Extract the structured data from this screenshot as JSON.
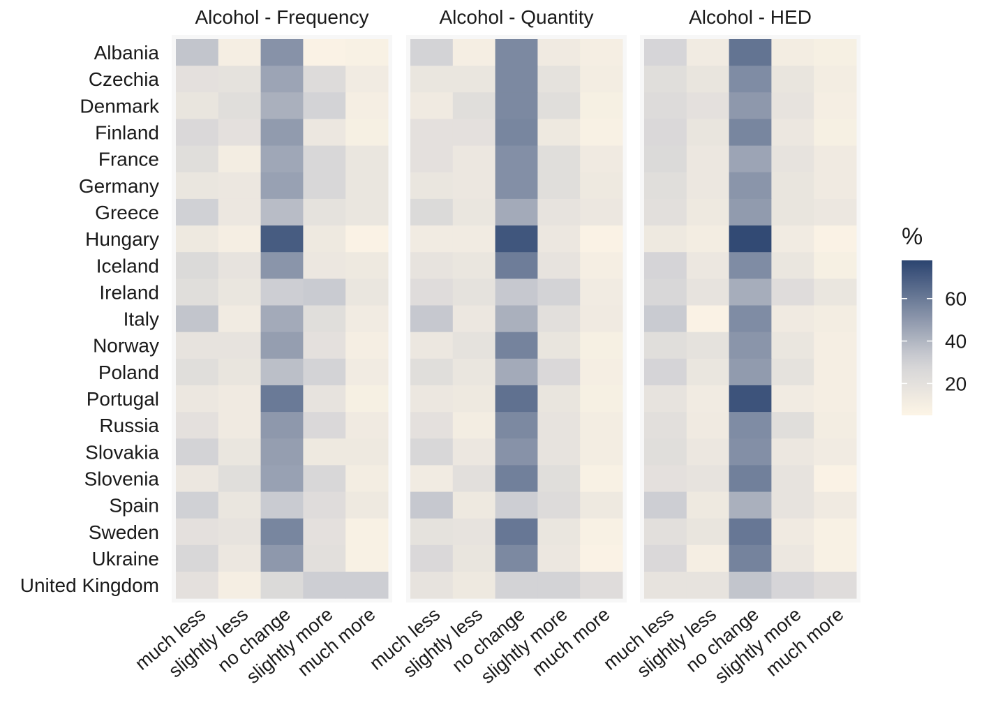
{
  "chart_data": {
    "type": "heatmap",
    "legend": {
      "title": "%",
      "ticks": [
        20,
        40,
        60
      ],
      "range": [
        5,
        78
      ],
      "low_color": "#FDF5E6",
      "mid_color": "#D2D2D6",
      "high_color": "#2B4470",
      "placement": "right"
    },
    "countries": [
      "Albania",
      "Czechia",
      "Denmark",
      "Finland",
      "France",
      "Germany",
      "Greece",
      "Hungary",
      "Iceland",
      "Ireland",
      "Italy",
      "Norway",
      "Poland",
      "Portugal",
      "Russia",
      "Slovakia",
      "Slovenia",
      "Spain",
      "Sweden",
      "Ukraine",
      "United Kingdom"
    ],
    "categories": [
      "much less",
      "slightly less",
      "no change",
      "slightly more",
      "much more"
    ],
    "panels": [
      {
        "title": "Alcohol - Frequency",
        "values": [
          [
            35,
            10,
            52,
            7,
            8
          ],
          [
            20,
            19,
            46,
            24,
            12
          ],
          [
            17,
            22,
            42,
            30,
            10
          ],
          [
            26,
            20,
            49,
            15,
            9
          ],
          [
            22,
            11,
            45,
            27,
            16
          ],
          [
            16,
            15,
            47,
            27,
            16
          ],
          [
            31,
            15,
            38,
            19,
            16
          ],
          [
            14,
            10,
            70,
            14,
            7
          ],
          [
            25,
            18,
            51,
            15,
            14
          ],
          [
            22,
            16,
            32,
            33,
            16
          ],
          [
            35,
            12,
            44,
            22,
            12
          ],
          [
            18,
            18,
            48,
            20,
            10
          ],
          [
            22,
            17,
            37,
            30,
            12
          ],
          [
            15,
            13,
            60,
            18,
            9
          ],
          [
            20,
            13,
            50,
            26,
            13
          ],
          [
            30,
            16,
            48,
            14,
            14
          ],
          [
            15,
            22,
            47,
            27,
            11
          ],
          [
            31,
            16,
            33,
            23,
            14
          ],
          [
            20,
            18,
            56,
            20,
            8
          ],
          [
            27,
            15,
            50,
            21,
            8
          ],
          [
            20,
            10,
            25,
            32,
            32
          ]
        ]
      },
      {
        "title": "Alcohol - Quantity",
        "values": [
          [
            30,
            10,
            55,
            13,
            10
          ],
          [
            16,
            16,
            55,
            19,
            11
          ],
          [
            13,
            22,
            55,
            22,
            9
          ],
          [
            20,
            20,
            56,
            14,
            8
          ],
          [
            20,
            15,
            53,
            22,
            13
          ],
          [
            16,
            15,
            53,
            22,
            14
          ],
          [
            25,
            16,
            44,
            18,
            15
          ],
          [
            12,
            12,
            72,
            15,
            7
          ],
          [
            18,
            16,
            59,
            18,
            10
          ],
          [
            23,
            19,
            34,
            30,
            12
          ],
          [
            34,
            15,
            42,
            21,
            13
          ],
          [
            15,
            19,
            57,
            17,
            9
          ],
          [
            22,
            16,
            44,
            26,
            10
          ],
          [
            15,
            14,
            63,
            17,
            9
          ],
          [
            20,
            11,
            55,
            18,
            11
          ],
          [
            27,
            15,
            52,
            18,
            11
          ],
          [
            12,
            21,
            58,
            22,
            8
          ],
          [
            34,
            14,
            32,
            24,
            14
          ],
          [
            19,
            18,
            61,
            16,
            8
          ],
          [
            26,
            17,
            55,
            15,
            7
          ],
          [
            18,
            14,
            30,
            30,
            23
          ]
        ]
      },
      {
        "title": "Alcohol - HED",
        "values": [
          [
            28,
            12,
            62,
            11,
            9
          ],
          [
            22,
            17,
            54,
            17,
            11
          ],
          [
            24,
            20,
            50,
            18,
            10
          ],
          [
            26,
            17,
            56,
            15,
            9
          ],
          [
            25,
            15,
            46,
            18,
            13
          ],
          [
            22,
            15,
            51,
            17,
            13
          ],
          [
            21,
            14,
            49,
            17,
            15
          ],
          [
            14,
            11,
            76,
            12,
            7
          ],
          [
            29,
            15,
            54,
            16,
            9
          ],
          [
            27,
            18,
            43,
            23,
            16
          ],
          [
            33,
            7,
            54,
            13,
            11
          ],
          [
            22,
            19,
            51,
            16,
            10
          ],
          [
            29,
            16,
            49,
            19,
            10
          ],
          [
            18,
            12,
            73,
            12,
            10
          ],
          [
            21,
            13,
            54,
            22,
            11
          ],
          [
            22,
            15,
            53,
            15,
            12
          ],
          [
            20,
            18,
            58,
            18,
            7
          ],
          [
            32,
            14,
            42,
            18,
            13
          ],
          [
            21,
            17,
            61,
            13,
            8
          ],
          [
            26,
            10,
            57,
            15,
            8
          ],
          [
            18,
            18,
            35,
            28,
            23
          ]
        ]
      }
    ]
  }
}
